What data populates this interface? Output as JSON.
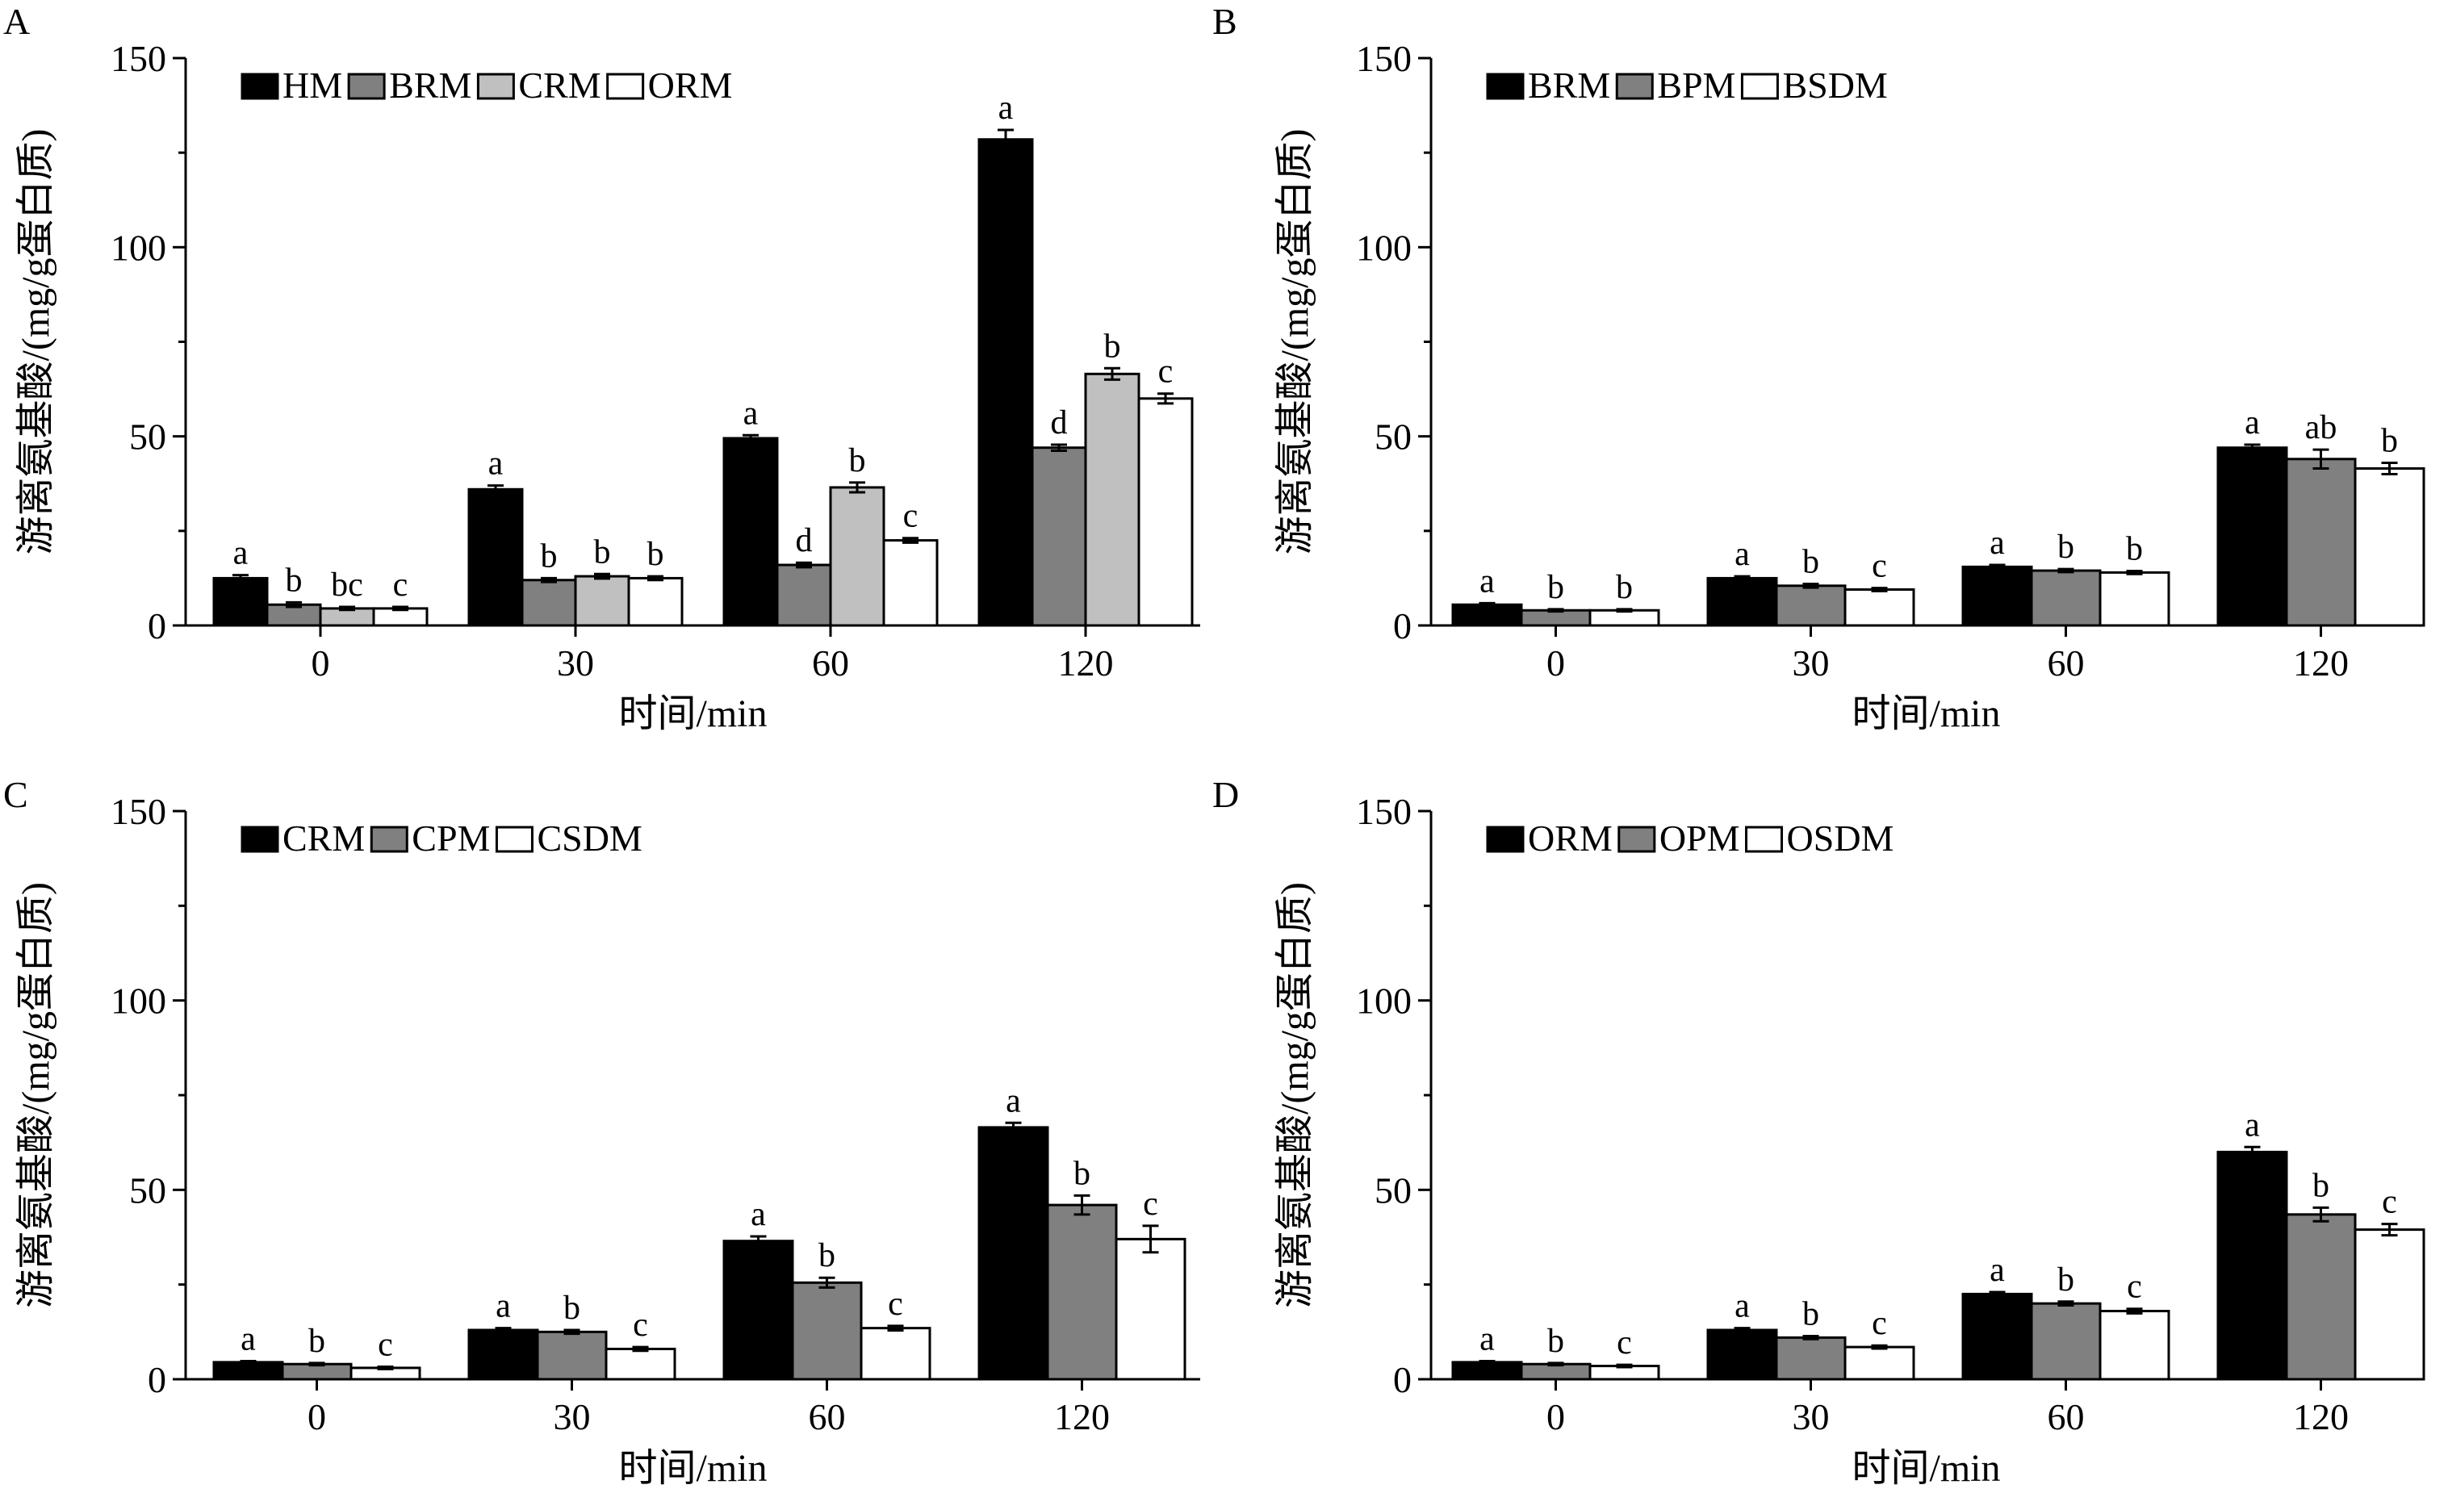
{
  "figure": {
    "panels": [
      "A",
      "B",
      "C",
      "D"
    ]
  },
  "chart_data": [
    {
      "panel": "A",
      "type": "bar",
      "xlabel": "时间/min",
      "ylabel": "游离氨基酸/(mg/g蛋白质)",
      "ylim": [
        0,
        150
      ],
      "yticks": [
        0,
        50,
        100,
        150
      ],
      "categories": [
        "0",
        "30",
        "60",
        "120"
      ],
      "legend_position": "top-left",
      "series": [
        {
          "name": "HM",
          "color": "#000000",
          "values": [
            12.5,
            36,
            49.5,
            128.5
          ],
          "errors": [
            0.8,
            1,
            0.8,
            2.5
          ],
          "labels": [
            "a",
            "a",
            "a",
            "a"
          ]
        },
        {
          "name": "BRM",
          "color": "#808080",
          "values": [
            5.5,
            12,
            16,
            47
          ],
          "errors": [
            0.6,
            0.5,
            0.6,
            0.8
          ],
          "labels": [
            "b",
            "b",
            "d",
            "d"
          ]
        },
        {
          "name": "CRM",
          "color": "#c0c0c0",
          "values": [
            4.5,
            13,
            36.5,
            66.5
          ],
          "errors": [
            0.4,
            0.6,
            1.3,
            1.5
          ],
          "labels": [
            "bc",
            "b",
            "b",
            "b"
          ]
        },
        {
          "name": "ORM",
          "color": "#ffffff",
          "values": [
            4.5,
            12.5,
            22.5,
            60
          ],
          "errors": [
            0.4,
            0.5,
            0.6,
            1.3
          ],
          "labels": [
            "c",
            "b",
            "c",
            "c"
          ]
        }
      ]
    },
    {
      "panel": "B",
      "type": "bar",
      "xlabel": "时间/min",
      "ylabel": "游离氨基酸/(mg/g蛋白质)",
      "ylim": [
        0,
        150
      ],
      "yticks": [
        0,
        50,
        100,
        150
      ],
      "categories": [
        "0",
        "30",
        "60",
        "120"
      ],
      "legend_position": "top-left",
      "series": [
        {
          "name": "BRM",
          "color": "#000000",
          "values": [
            5.5,
            12.5,
            15.5,
            47
          ],
          "errors": [
            0.4,
            0.5,
            0.5,
            0.8
          ],
          "labels": [
            "a",
            "a",
            "a",
            "a"
          ]
        },
        {
          "name": "BPM",
          "color": "#808080",
          "values": [
            4,
            10.5,
            14.5,
            44
          ],
          "errors": [
            0.3,
            0.5,
            0.4,
            2.5
          ],
          "labels": [
            "b",
            "b",
            "b",
            "ab"
          ]
        },
        {
          "name": "BSDM",
          "color": "#ffffff",
          "values": [
            4,
            9.5,
            14,
            41.5
          ],
          "errors": [
            0.3,
            0.4,
            0.4,
            1.5
          ],
          "labels": [
            "b",
            "c",
            "b",
            "b"
          ]
        }
      ]
    },
    {
      "panel": "C",
      "type": "bar",
      "xlabel": "时间/min",
      "ylabel": "游离氨基酸/(mg/g蛋白质)",
      "ylim": [
        0,
        150
      ],
      "yticks": [
        0,
        50,
        100,
        150
      ],
      "categories": [
        "0",
        "30",
        "60",
        "120"
      ],
      "legend_position": "top-left",
      "series": [
        {
          "name": "CRM",
          "color": "#000000",
          "values": [
            4.5,
            13,
            36.5,
            66.5
          ],
          "errors": [
            0.3,
            0.5,
            1.2,
            1.2
          ],
          "labels": [
            "a",
            "a",
            "a",
            "a"
          ]
        },
        {
          "name": "CPM",
          "color": "#808080",
          "values": [
            4,
            12.5,
            25.5,
            46
          ],
          "errors": [
            0.3,
            0.5,
            1.3,
            2.5
          ],
          "labels": [
            "b",
            "b",
            "b",
            "b"
          ]
        },
        {
          "name": "CSDM",
          "color": "#ffffff",
          "values": [
            3,
            8,
            13.5,
            37
          ],
          "errors": [
            0.3,
            0.5,
            0.6,
            3.5
          ],
          "labels": [
            "c",
            "c",
            "c",
            "c"
          ]
        }
      ]
    },
    {
      "panel": "D",
      "type": "bar",
      "xlabel": "时间/min",
      "ylabel": "游离氨基酸/(mg/g蛋白质)",
      "ylim": [
        0,
        150
      ],
      "yticks": [
        0,
        50,
        100,
        150
      ],
      "categories": [
        "0",
        "30",
        "60",
        "120"
      ],
      "legend_position": "top-left",
      "series": [
        {
          "name": "ORM",
          "color": "#000000",
          "values": [
            4.5,
            13,
            22.5,
            60
          ],
          "errors": [
            0.3,
            0.5,
            0.5,
            1.3
          ],
          "labels": [
            "a",
            "a",
            "a",
            "a"
          ]
        },
        {
          "name": "OPM",
          "color": "#808080",
          "values": [
            4,
            11,
            20,
            43.5
          ],
          "errors": [
            0.3,
            0.4,
            0.5,
            1.8
          ],
          "labels": [
            "b",
            "b",
            "b",
            "b"
          ]
        },
        {
          "name": "OSDM",
          "color": "#ffffff",
          "values": [
            3.5,
            8.5,
            18,
            39.5
          ],
          "errors": [
            0.3,
            0.4,
            0.6,
            1.5
          ],
          "labels": [
            "c",
            "c",
            "c",
            "c"
          ]
        }
      ]
    }
  ]
}
